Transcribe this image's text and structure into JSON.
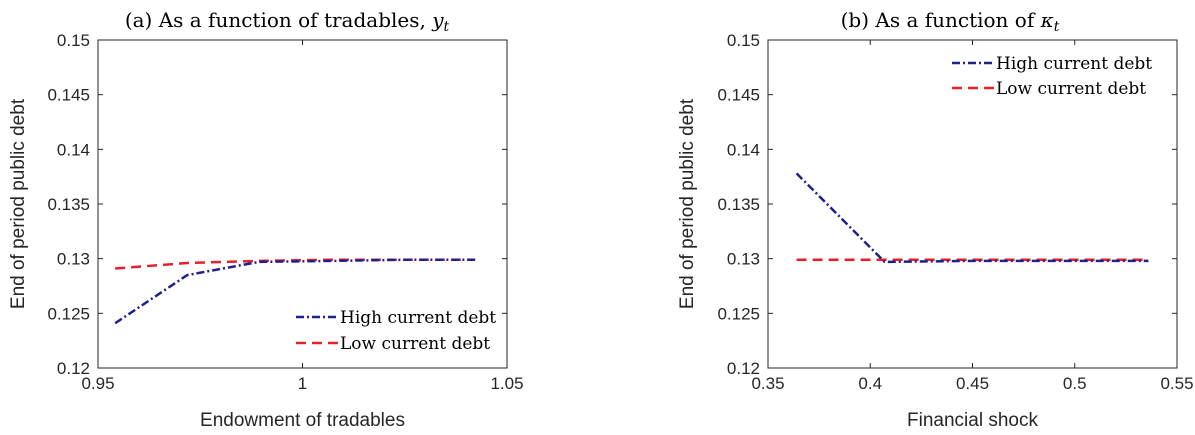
{
  "chart_data": [
    {
      "type": "line",
      "title": "(a) As a function of tradables, ",
      "title_math": "y",
      "title_sub": "t",
      "xlabel": "Endowment of tradables",
      "ylabel": "End of period public debt",
      "xlim": [
        0.95,
        1.05
      ],
      "ylim": [
        0.12,
        0.15
      ],
      "xticks": [
        0.95,
        1.0,
        1.05
      ],
      "xtick_labels": [
        "0.95",
        "1",
        "1.05"
      ],
      "yticks": [
        0.12,
        0.125,
        0.13,
        0.135,
        0.14,
        0.145,
        0.15
      ],
      "ytick_labels": [
        "0.12",
        "0.125",
        "0.13",
        "0.135",
        "0.14",
        "0.145",
        "0.15"
      ],
      "grid": false,
      "legend_position": "bottom-right",
      "series": [
        {
          "name": "High current debt",
          "color": "#1f1f8f",
          "style": "dash-dot",
          "x": [
            0.9542,
            0.9718,
            0.9894,
            1.007,
            1.0246,
            1.0422
          ],
          "y": [
            0.1241,
            0.1285,
            0.1297,
            0.1298,
            0.1299,
            0.1299
          ]
        },
        {
          "name": "Low current debt",
          "color": "#e8202a",
          "style": "dashed",
          "x": [
            0.9542,
            0.9718,
            0.9894,
            1.007,
            1.0246,
            1.0422
          ],
          "y": [
            0.1291,
            0.1296,
            0.1298,
            0.1299,
            0.1299,
            0.1299
          ]
        }
      ]
    },
    {
      "type": "line",
      "title": "(b) As a function of ",
      "title_math": "κ",
      "title_sub": "t",
      "xlabel": "Financial shock",
      "ylabel": "End of period public debt",
      "xlim": [
        0.35,
        0.55
      ],
      "ylim": [
        0.12,
        0.15
      ],
      "xticks": [
        0.35,
        0.4,
        0.45,
        0.5,
        0.55
      ],
      "xtick_labels": [
        "0.35",
        "0.4",
        "0.45",
        "0.5",
        "0.55"
      ],
      "yticks": [
        0.12,
        0.125,
        0.13,
        0.135,
        0.14,
        0.145,
        0.15
      ],
      "ytick_labels": [
        "0.12",
        "0.125",
        "0.13",
        "0.135",
        "0.14",
        "0.145",
        "0.15"
      ],
      "grid": false,
      "legend_position": "top-right",
      "series": [
        {
          "name": "High current debt",
          "color": "#1f1f8f",
          "style": "dash-dot",
          "x": [
            0.364,
            0.407,
            0.45,
            0.493,
            0.536
          ],
          "y": [
            0.1378,
            0.1297,
            0.1298,
            0.1298,
            0.1298
          ]
        },
        {
          "name": "Low current debt",
          "color": "#e8202a",
          "style": "dashed",
          "x": [
            0.364,
            0.407,
            0.45,
            0.493,
            0.536
          ],
          "y": [
            0.1299,
            0.1299,
            0.1299,
            0.1299,
            0.1299
          ]
        }
      ]
    }
  ]
}
